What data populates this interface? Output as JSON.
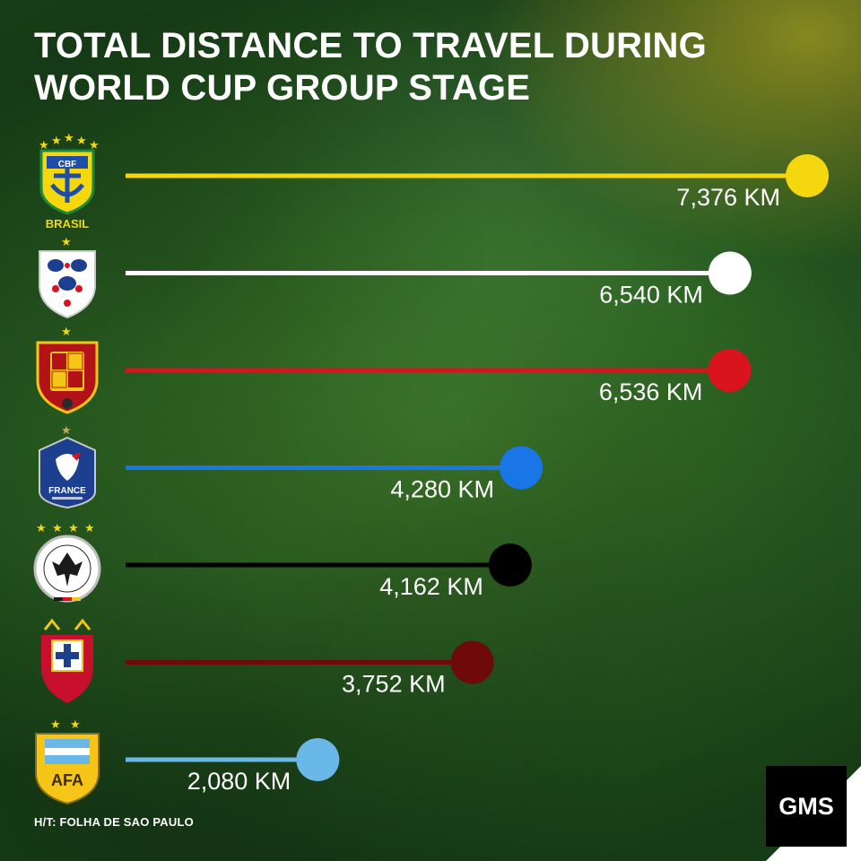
{
  "title": "TOTAL DISTANCE TO TRAVEL DURING WORLD CUP GROUP STAGE",
  "source": "H/T: FOLHA DE SAO PAULO",
  "brand": "GMS",
  "crests": {
    "brazil": {
      "icon": "brazil-cbf-crest-icon",
      "stars": 5,
      "text": "BRASIL",
      "badge": "CBF"
    },
    "england": {
      "icon": "england-three-lions-crest-icon",
      "stars": 1
    },
    "spain": {
      "icon": "spain-rfef-crest-icon",
      "stars": 1
    },
    "france": {
      "icon": "france-fff-crest-icon",
      "stars": 1,
      "text": "FRANCE"
    },
    "germany": {
      "icon": "germany-dfb-crest-icon",
      "stars": 4
    },
    "portugal": {
      "icon": "portugal-fpf-crest-icon",
      "stars": 0
    },
    "argentina": {
      "icon": "argentina-afa-crest-icon",
      "stars": 2,
      "text": "AFA"
    }
  },
  "chart_data": {
    "type": "bar",
    "title": "TOTAL DISTANCE TO TRAVEL DURING WORLD CUP GROUP STAGE",
    "categories": [
      "brazil",
      "england",
      "spain",
      "france",
      "germany",
      "portugal",
      "argentina"
    ],
    "values": [
      7376,
      6540,
      6536,
      4280,
      4162,
      3752,
      2080
    ],
    "labels": [
      "7,376 KM",
      "6,540 KM",
      "6,536 KM",
      "4,280 KM",
      "4,162 KM",
      "3,752 KM",
      "2,080 KM"
    ],
    "colors": [
      "#f5d70f",
      "#ffffff",
      "#d9141e",
      "#1a75e6",
      "#000000",
      "#6e0a0a",
      "#6ab8e8"
    ],
    "unit": "KM"
  }
}
